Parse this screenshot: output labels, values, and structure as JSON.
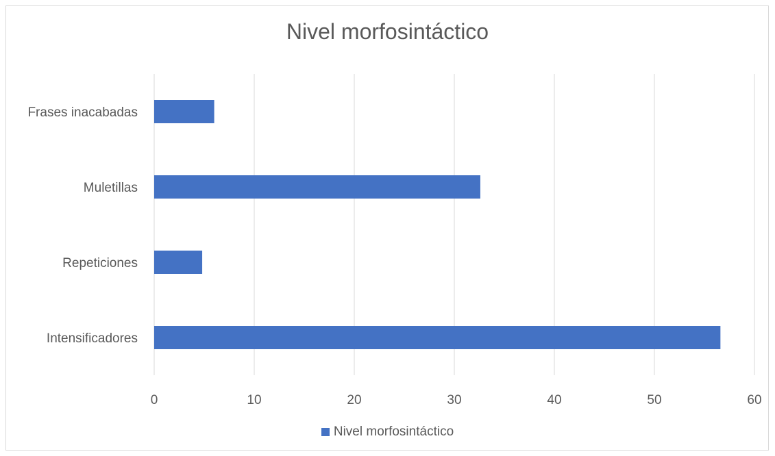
{
  "chart_data": {
    "type": "bar",
    "orientation": "horizontal",
    "title": "Nivel morfosintáctico",
    "categories": [
      "Frases inacabadas",
      "Muletillas",
      "Repeticiones",
      "Intensificadores"
    ],
    "series": [
      {
        "name": "Nivel morfosintáctico",
        "values": [
          6,
          32.6,
          4.8,
          56.6
        ],
        "color": "#4472c4"
      }
    ],
    "xlim": [
      0,
      60
    ],
    "xticks": [
      "0",
      "10",
      "20",
      "30",
      "40",
      "50",
      "60"
    ],
    "grid": true,
    "legend_position": "bottom"
  }
}
